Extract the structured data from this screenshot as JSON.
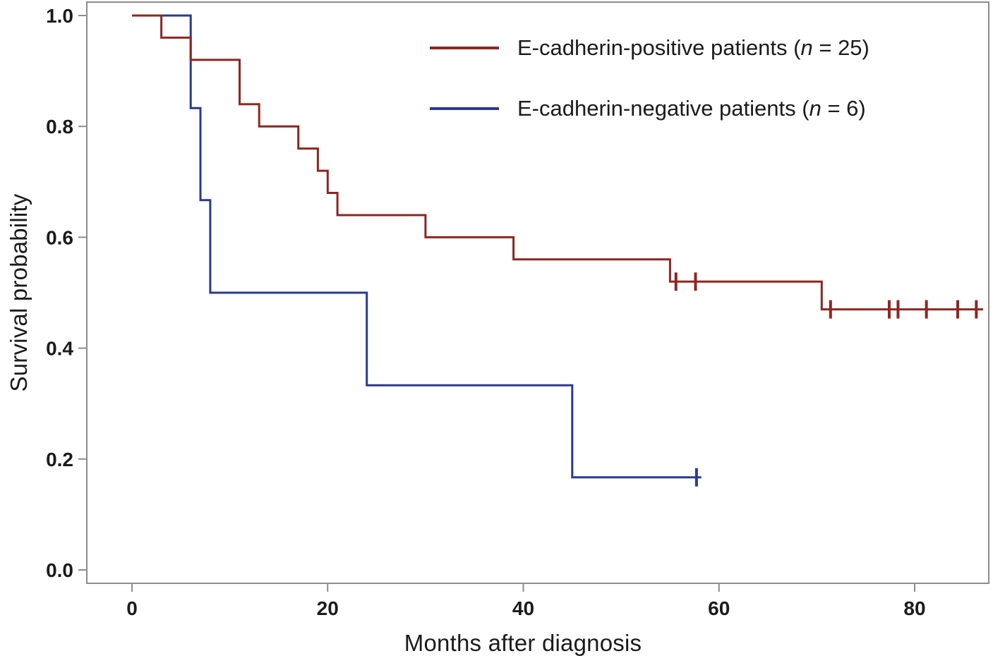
{
  "figure": {
    "xlabel": "Months after diagnosis",
    "ylabel": "Survival probability"
  },
  "legend": {
    "items": [
      {
        "series": "positive",
        "prefix": "E-cadherin-positive patients (",
        "n_char": "n",
        "suffix": " = 25)",
        "color": "#8e2620"
      },
      {
        "series": "negative",
        "prefix": "E-cadherin-negative patients (",
        "n_char": "n",
        "suffix": " = 6)",
        "color": "#2b3a8f"
      }
    ]
  },
  "chart_data": {
    "type": "line",
    "subtype": "kaplan-meier-step",
    "title": "",
    "xlabel": "Months after diagnosis",
    "ylabel": "Survival probability",
    "grid": false,
    "legend_position": "top-right-inside",
    "xlim": [
      -4.6,
      87.6
    ],
    "ylim": [
      -0.024,
      1.024
    ],
    "x_ticks": [
      {
        "v": 0,
        "label": "0"
      },
      {
        "v": 20,
        "label": "20"
      },
      {
        "v": 40,
        "label": "40"
      },
      {
        "v": 60,
        "label": "60"
      },
      {
        "v": 80,
        "label": "80"
      }
    ],
    "y_ticks": [
      {
        "v": 1.0,
        "label": "1.0"
      },
      {
        "v": 0.8,
        "label": "0.8"
      },
      {
        "v": 0.6,
        "label": "0.6"
      },
      {
        "v": 0.4,
        "label": "0.4"
      },
      {
        "v": 0.2,
        "label": "0.2"
      },
      {
        "v": 0.0,
        "label": "0.0"
      }
    ],
    "series": [
      {
        "name": "E-cadherin-negative patients",
        "n": 6,
        "color": "#2b3a8f",
        "steps": [
          [
            0,
            1.0
          ],
          [
            6,
            1.0
          ],
          [
            6,
            0.833
          ],
          [
            7,
            0.833
          ],
          [
            7,
            0.667
          ],
          [
            8,
            0.667
          ],
          [
            8,
            0.5
          ],
          [
            24,
            0.5
          ],
          [
            24,
            0.333
          ],
          [
            45,
            0.333
          ],
          [
            45,
            0.167
          ],
          [
            58.2,
            0.167
          ]
        ],
        "censor_marks": [
          [
            57.7,
            0.167
          ]
        ]
      },
      {
        "name": "E-cadherin-positive patients",
        "n": 25,
        "color": "#8e2620",
        "steps": [
          [
            0,
            1.0
          ],
          [
            3,
            1.0
          ],
          [
            3,
            0.96
          ],
          [
            6,
            0.96
          ],
          [
            6,
            0.92
          ],
          [
            11,
            0.92
          ],
          [
            11,
            0.84
          ],
          [
            13,
            0.84
          ],
          [
            13,
            0.8
          ],
          [
            17,
            0.8
          ],
          [
            17,
            0.76
          ],
          [
            19,
            0.76
          ],
          [
            19,
            0.72
          ],
          [
            20,
            0.72
          ],
          [
            20,
            0.68
          ],
          [
            21,
            0.68
          ],
          [
            21,
            0.64
          ],
          [
            30,
            0.64
          ],
          [
            30,
            0.6
          ],
          [
            39,
            0.6
          ],
          [
            39,
            0.56
          ],
          [
            55,
            0.56
          ],
          [
            55,
            0.52
          ],
          [
            70.5,
            0.52
          ],
          [
            70.5,
            0.47
          ],
          [
            87,
            0.47
          ]
        ],
        "censor_marks": [
          [
            55.6,
            0.52
          ],
          [
            57.6,
            0.52
          ],
          [
            71.4,
            0.47
          ],
          [
            77.4,
            0.47
          ],
          [
            78.3,
            0.47
          ],
          [
            81.2,
            0.47
          ],
          [
            84.4,
            0.47
          ],
          [
            86.3,
            0.47
          ]
        ]
      }
    ]
  }
}
